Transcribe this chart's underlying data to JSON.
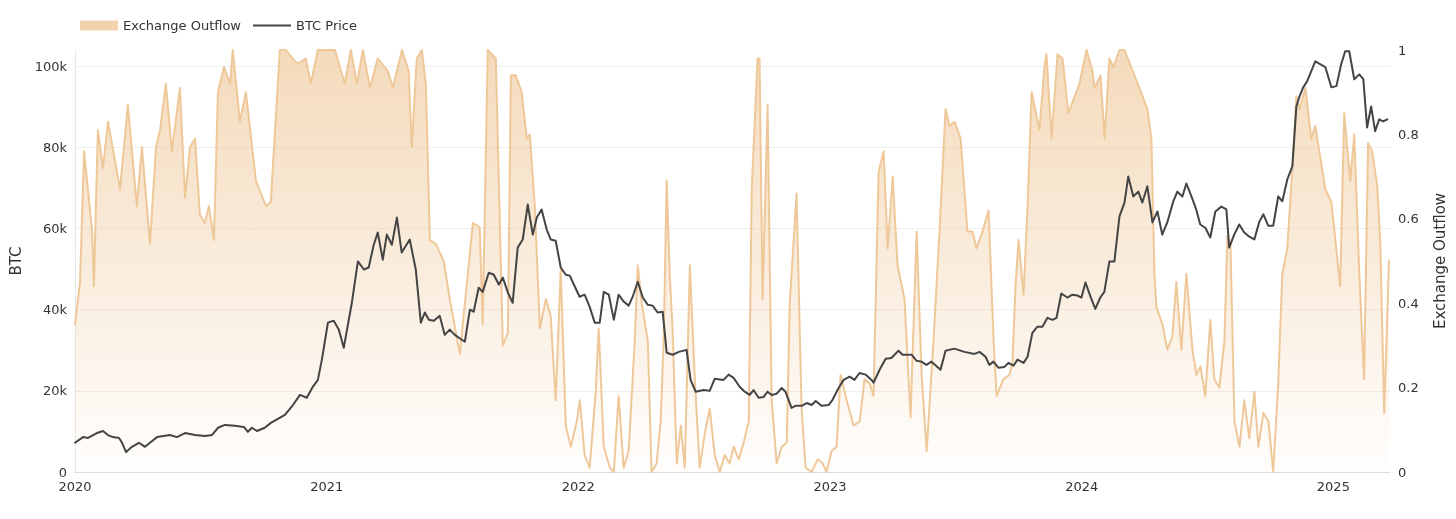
{
  "chart_data": {
    "type": "line",
    "ylabel": "BTC",
    "y2label": "Exchange Outflow",
    "legend": "top left",
    "grid": "y",
    "marker": "none",
    "line_style": "solid",
    "xlim": [
      2020,
      2025.225
    ],
    "xticks": [
      2020,
      2021,
      2022,
      2023,
      2024,
      2025
    ],
    "ylim": [
      0,
      104000
    ],
    "yticks": [
      0,
      {
        "value": 20000,
        "label": "20k"
      },
      {
        "value": 40000,
        "label": "40k"
      },
      {
        "value": 60000,
        "label": "60k"
      },
      {
        "value": 80000,
        "label": "80k"
      },
      {
        "value": 100000,
        "label": "100k"
      }
    ],
    "y2lim": [
      0,
      1
    ],
    "y2ticks": [
      0,
      0.2,
      0.4,
      0.6,
      0.8,
      1
    ],
    "series": [
      {
        "name": "Exchange Outflow",
        "type": "area",
        "axis": "y2",
        "color": "#efc89a",
        "x": [
          2020.0,
          2020.02,
          2020.036,
          2020.068,
          2020.075,
          2020.091,
          2020.111,
          2020.131,
          2020.179,
          2020.21,
          2020.246,
          2020.266,
          2020.298,
          2020.322,
          2020.338,
          2020.361,
          2020.385,
          2020.417,
          2020.437,
          2020.457,
          2020.477,
          2020.496,
          2020.516,
          2020.532,
          2020.552,
          2020.568,
          2020.592,
          2020.616,
          2020.627,
          2020.655,
          2020.679,
          2020.719,
          2020.759,
          2020.778,
          2020.814,
          2020.838,
          2020.878,
          2020.894,
          2020.917,
          2020.937,
          2020.965,
          2021.033,
          2021.072,
          2021.096,
          2021.12,
          2021.144,
          2021.172,
          2021.203,
          2021.243,
          2021.263,
          2021.299,
          2021.326,
          2021.338,
          2021.358,
          2021.378,
          2021.394,
          2021.41,
          2021.434,
          2021.465,
          2021.489,
          2021.529,
          2021.561,
          2021.581,
          2021.608,
          2021.62,
          2021.64,
          2021.672,
          2021.7,
          2021.72,
          2021.732,
          2021.751,
          2021.775,
          2021.795,
          2021.807,
          2021.827,
          2021.847,
          2021.871,
          2021.89,
          2021.91,
          2021.93,
          2021.95,
          2021.97,
          2021.994,
          2022.006,
          2022.025,
          2022.045,
          2022.069,
          2022.081,
          2022.101,
          2022.125,
          2022.141,
          2022.16,
          2022.18,
          2022.2,
          2022.224,
          2022.236,
          2022.252,
          2022.276,
          2022.291,
          2022.311,
          2022.327,
          2022.339,
          2022.351,
          2022.363,
          2022.375,
          2022.391,
          2022.407,
          2022.423,
          2022.443,
          2022.462,
          2022.482,
          2022.502,
          2022.522,
          2022.542,
          2022.562,
          2022.581,
          2022.601,
          2022.617,
          2022.637,
          2022.657,
          2022.677,
          2022.689,
          2022.712,
          2022.72,
          2022.732,
          2022.752,
          2022.768,
          2022.788,
          2022.808,
          2022.828,
          2022.84,
          2022.867,
          2022.887,
          2022.903,
          2022.927,
          2022.951,
          2022.971,
          2022.986,
          2023.006,
          2023.026,
          2023.042,
          2023.066,
          2023.094,
          2023.118,
          2023.137,
          2023.157,
          2023.173,
          2023.193,
          2023.213,
          2023.229,
          2023.249,
          2023.268,
          2023.296,
          2023.32,
          2023.344,
          2023.364,
          2023.384,
          2023.411,
          2023.435,
          2023.459,
          2023.475,
          2023.495,
          2023.519,
          2023.546,
          2023.566,
          2023.582,
          2023.606,
          2023.63,
          2023.65,
          2023.662,
          2023.689,
          2023.713,
          2023.725,
          2023.737,
          2023.749,
          2023.769,
          2023.785,
          2023.801,
          2023.832,
          2023.852,
          2023.86,
          2023.88,
          2023.904,
          2023.924,
          2023.947,
          2023.991,
          2024.019,
          2024.043,
          2024.051,
          2024.075,
          2024.091,
          2024.11,
          2024.126,
          2024.15,
          2024.17,
          2024.229,
          2024.261,
          2024.277,
          2024.289,
          2024.297,
          2024.321,
          2024.34,
          2024.36,
          2024.376,
          2024.396,
          2024.416,
          2024.44,
          2024.456,
          2024.472,
          2024.491,
          2024.511,
          2024.527,
          2024.547,
          2024.567,
          2024.579,
          2024.591,
          2024.607,
          2024.627,
          2024.646,
          2024.666,
          2024.686,
          2024.702,
          2024.722,
          2024.742,
          2024.761,
          2024.781,
          2024.797,
          2024.817,
          2024.837,
          2024.853,
          2024.865,
          2024.889,
          2024.912,
          2024.928,
          2024.968,
          2024.992,
          2025.027,
          2025.043,
          2025.067,
          2025.083,
          2025.103,
          2025.122,
          2025.138,
          2025.154,
          2025.174,
          2025.186,
          2025.202,
          2025.221
        ],
        "values": [
          0.35,
          0.45,
          0.76,
          0.57,
          0.44,
          0.81,
          0.72,
          0.83,
          0.67,
          0.87,
          0.63,
          0.77,
          0.54,
          0.77,
          0.81,
          0.92,
          0.76,
          0.91,
          0.65,
          0.77,
          0.79,
          0.61,
          0.59,
          0.63,
          0.55,
          0.9,
          0.96,
          0.92,
          1.0,
          0.83,
          0.9,
          0.69,
          0.63,
          0.64,
          1.0,
          1.0,
          0.97,
          0.97,
          0.98,
          0.92,
          1.0,
          1.0,
          0.92,
          1.0,
          0.92,
          1.0,
          0.91,
          0.98,
          0.95,
          0.91,
          1.0,
          0.95,
          0.77,
          0.98,
          1.0,
          0.92,
          0.55,
          0.54,
          0.5,
          0.41,
          0.28,
          0.47,
          0.59,
          0.58,
          0.35,
          1.0,
          0.98,
          0.3,
          0.33,
          0.94,
          0.94,
          0.9,
          0.79,
          0.8,
          0.63,
          0.34,
          0.41,
          0.37,
          0.17,
          0.48,
          0.11,
          0.06,
          0.12,
          0.17,
          0.04,
          0.01,
          0.19,
          0.34,
          0.06,
          0.01,
          0.0,
          0.18,
          0.01,
          0.05,
          0.31,
          0.49,
          0.4,
          0.31,
          0.0,
          0.02,
          0.12,
          0.31,
          0.69,
          0.47,
          0.33,
          0.02,
          0.11,
          0.01,
          0.49,
          0.23,
          0.01,
          0.09,
          0.15,
          0.04,
          0.0,
          0.04,
          0.02,
          0.06,
          0.03,
          0.07,
          0.12,
          0.67,
          0.98,
          0.98,
          0.41,
          0.87,
          0.17,
          0.02,
          0.06,
          0.07,
          0.4,
          0.66,
          0.15,
          0.01,
          0.0,
          0.03,
          0.02,
          0.0,
          0.05,
          0.06,
          0.23,
          0.17,
          0.11,
          0.12,
          0.22,
          0.21,
          0.18,
          0.71,
          0.76,
          0.53,
          0.7,
          0.49,
          0.41,
          0.13,
          0.57,
          0.23,
          0.05,
          0.31,
          0.57,
          0.86,
          0.82,
          0.83,
          0.79,
          0.57,
          0.57,
          0.53,
          0.57,
          0.62,
          0.31,
          0.18,
          0.22,
          0.23,
          0.26,
          0.44,
          0.55,
          0.42,
          0.63,
          0.9,
          0.81,
          0.96,
          0.99,
          0.79,
          0.99,
          0.98,
          0.85,
          0.92,
          1.0,
          0.95,
          0.91,
          0.94,
          0.79,
          0.98,
          0.96,
          1.0,
          1.0,
          0.91,
          0.86,
          0.79,
          0.47,
          0.39,
          0.35,
          0.29,
          0.32,
          0.45,
          0.29,
          0.47,
          0.29,
          0.23,
          0.25,
          0.18,
          0.36,
          0.22,
          0.2,
          0.31,
          0.56,
          0.54,
          0.12,
          0.06,
          0.17,
          0.08,
          0.19,
          0.06,
          0.14,
          0.12,
          0.0,
          0.21,
          0.47,
          0.53,
          0.72,
          0.89,
          0.86,
          0.91,
          0.79,
          0.82,
          0.67,
          0.64,
          0.44,
          0.85,
          0.69,
          0.8,
          0.47,
          0.22,
          0.78,
          0.76,
          0.68,
          0.55,
          0.14,
          0.5
        ]
      },
      {
        "name": "BTC Price",
        "axis": "y",
        "color": "#444444",
        "x": [
          2020.0,
          2020.032,
          2020.052,
          2020.087,
          2020.111,
          2020.131,
          2020.151,
          2020.175,
          2020.187,
          2020.203,
          2020.226,
          2020.254,
          2020.278,
          2020.298,
          2020.326,
          2020.377,
          2020.405,
          2020.437,
          2020.477,
          2020.516,
          2020.544,
          2020.568,
          2020.596,
          2020.635,
          2020.671,
          2020.687,
          2020.703,
          2020.723,
          2020.754,
          2020.778,
          2020.806,
          2020.834,
          2020.866,
          2020.894,
          2020.921,
          2020.945,
          2020.965,
          2020.981,
          2021.005,
          2021.028,
          2021.048,
          2021.068,
          2021.1,
          2021.124,
          2021.148,
          2021.167,
          2021.187,
          2021.203,
          2021.223,
          2021.239,
          2021.259,
          2021.279,
          2021.298,
          2021.33,
          2021.354,
          2021.374,
          2021.39,
          2021.406,
          2021.426,
          2021.449,
          2021.469,
          2021.489,
          2021.509,
          2021.537,
          2021.549,
          2021.569,
          2021.584,
          2021.604,
          2021.62,
          2021.644,
          2021.664,
          2021.684,
          2021.7,
          2021.72,
          2021.739,
          2021.759,
          2021.779,
          2021.799,
          2021.819,
          2021.835,
          2021.854,
          2021.874,
          2021.89,
          2021.91,
          2021.93,
          2021.95,
          2021.966,
          2021.982,
          2022.005,
          2022.025,
          2022.045,
          2022.065,
          2022.085,
          2022.101,
          2022.121,
          2022.141,
          2022.16,
          2022.18,
          2022.2,
          2022.216,
          2022.236,
          2022.256,
          2022.276,
          2022.295,
          2022.315,
          2022.335,
          2022.351,
          2022.375,
          2022.399,
          2022.43,
          2022.446,
          2022.466,
          2022.498,
          2022.522,
          2022.542,
          2022.577,
          2022.597,
          2022.617,
          2022.641,
          2022.661,
          2022.681,
          2022.696,
          2022.716,
          2022.736,
          2022.752,
          2022.768,
          2022.788,
          2022.808,
          2022.823,
          2022.847,
          2022.863,
          2022.887,
          2022.907,
          2022.927,
          2022.943,
          2022.966,
          2022.994,
          2023.01,
          2023.034,
          2023.054,
          2023.078,
          2023.097,
          2023.117,
          2023.141,
          2023.165,
          2023.173,
          2023.197,
          2023.221,
          2023.244,
          2023.272,
          2023.288,
          2023.324,
          2023.344,
          2023.363,
          2023.383,
          2023.403,
          2023.439,
          2023.459,
          2023.494,
          2023.534,
          2023.574,
          2023.594,
          2023.618,
          2023.633,
          2023.649,
          2023.669,
          2023.693,
          2023.709,
          2023.729,
          2023.745,
          2023.769,
          2023.785,
          2023.804,
          2023.824,
          2023.844,
          2023.864,
          2023.884,
          2023.9,
          2023.919,
          2023.943,
          2023.963,
          2023.983,
          2023.999,
          2024.015,
          2024.035,
          2024.054,
          2024.074,
          2024.09,
          2024.11,
          2024.13,
          2024.15,
          2024.17,
          2024.185,
          2024.205,
          2024.225,
          2024.241,
          2024.261,
          2024.281,
          2024.301,
          2024.32,
          2024.34,
          2024.364,
          2024.38,
          2024.4,
          2024.416,
          2024.436,
          2024.455,
          2024.471,
          2024.491,
          2024.511,
          2024.531,
          2024.555,
          2024.575,
          2024.586,
          2024.606,
          2024.626,
          2024.646,
          2024.666,
          2024.686,
          2024.706,
          2024.722,
          2024.741,
          2024.761,
          2024.781,
          2024.797,
          2024.817,
          2024.837,
          2024.853,
          2024.864,
          2024.88,
          2024.896,
          2024.928,
          2024.968,
          2024.992,
          2025.012,
          2025.031,
          2025.047,
          2025.063,
          2025.083,
          2025.103,
          2025.119,
          2025.134,
          2025.15,
          2025.166,
          2025.182,
          2025.198,
          2025.214
        ],
        "values": [
          7200,
          8600,
          8400,
          9600,
          10100,
          9100,
          8600,
          8400,
          7200,
          4900,
          6200,
          7200,
          6200,
          7200,
          8600,
          9100,
          8600,
          9600,
          9100,
          8900,
          9100,
          10900,
          11600,
          11400,
          11100,
          9900,
          10900,
          10100,
          10900,
          12100,
          13100,
          14100,
          16500,
          19000,
          18300,
          21000,
          22700,
          27700,
          36800,
          37300,
          35100,
          30600,
          41700,
          51900,
          49900,
          50400,
          56000,
          59000,
          52300,
          58500,
          56000,
          62700,
          54100,
          57300,
          49900,
          36800,
          39300,
          37500,
          37300,
          38500,
          33800,
          35100,
          33800,
          32600,
          32100,
          40000,
          39500,
          45400,
          44400,
          49100,
          48600,
          46200,
          47900,
          44200,
          41700,
          55300,
          57300,
          65900,
          58500,
          62700,
          64700,
          59800,
          57300,
          57000,
          50400,
          48600,
          48400,
          46200,
          43200,
          43700,
          40700,
          36800,
          36800,
          44400,
          43700,
          37500,
          43700,
          42000,
          41000,
          43200,
          46900,
          43000,
          41200,
          41000,
          39300,
          39500,
          29400,
          28900,
          29600,
          30100,
          22700,
          19800,
          20200,
          20000,
          23000,
          22700,
          24000,
          23200,
          21000,
          19800,
          19000,
          20200,
          18300,
          18500,
          19800,
          19000,
          19300,
          20700,
          19800,
          15800,
          16300,
          16300,
          17000,
          16500,
          17500,
          16300,
          16500,
          17800,
          20700,
          22700,
          23500,
          22700,
          24400,
          24000,
          22700,
          22000,
          25200,
          27900,
          28100,
          29900,
          28900,
          28900,
          27400,
          27200,
          26400,
          27200,
          25200,
          29900,
          30400,
          29600,
          29100,
          29600,
          28400,
          26400,
          27200,
          25700,
          25900,
          26900,
          26200,
          27700,
          26900,
          28400,
          34300,
          35800,
          35800,
          38000,
          37500,
          38000,
          44000,
          43000,
          43700,
          43500,
          43000,
          46700,
          43200,
          40200,
          43000,
          44400,
          51900,
          51900,
          63000,
          66400,
          72800,
          67900,
          69100,
          66400,
          70400,
          61500,
          64200,
          58500,
          61500,
          66700,
          69100,
          67900,
          71100,
          67900,
          64700,
          61000,
          60200,
          57800,
          64200,
          65400,
          64700,
          55300,
          58500,
          61000,
          59000,
          58000,
          57300,
          61700,
          63500,
          60700,
          60700,
          67900,
          66700,
          72100,
          75300,
          90100,
          92300,
          94800,
          96300,
          101200,
          99800,
          94800,
          95100,
          100500,
          103700,
          103700,
          96800,
          98000,
          96800,
          84900,
          90100,
          84000,
          86900,
          86400,
          86900
        ]
      }
    ]
  }
}
